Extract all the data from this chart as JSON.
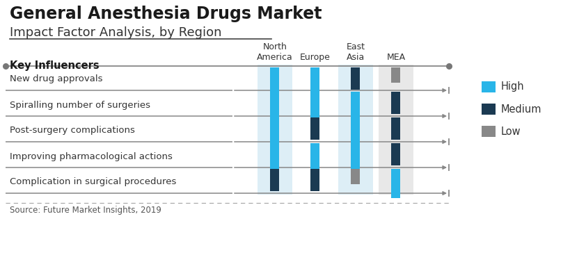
{
  "title": "General Anesthesia Drugs Market",
  "subtitle": "Impact Factor Analysis, by Region",
  "source": "Source: Future Market Insights, 2019",
  "columns": [
    "North\nAmerica",
    "Europe",
    "East\nAsia",
    "MEA"
  ],
  "rows": [
    "New drug approvals",
    "Spiralling number of surgeries",
    "Post-surgery complications",
    "Improving pharmacological actions",
    "Complication in surgical procedures"
  ],
  "key_influencers_label": "Key Influencers",
  "colors": {
    "High": "#29b5e8",
    "Medium": "#1b3a52",
    "Low": "#888888"
  },
  "legend_entries": [
    "High",
    "Medium",
    "Low"
  ],
  "cell_data": [
    [
      "High",
      "High",
      "Medium",
      "Low"
    ],
    [
      "High",
      "High",
      "High",
      "Medium"
    ],
    [
      "High",
      "Medium",
      "High",
      "Medium"
    ],
    [
      "High",
      "High",
      "High",
      "Medium"
    ],
    [
      "Medium",
      "Medium",
      "Low",
      "High"
    ]
  ],
  "col_bg_colors": [
    "#ddeef6",
    "#ffffff",
    "#ddeef6",
    "#e8e8e8"
  ],
  "fig_bg": "#ffffff",
  "title_fontsize": 17,
  "subtitle_fontsize": 13,
  "row_label_fontsize": 9.5,
  "col_label_fontsize": 9
}
